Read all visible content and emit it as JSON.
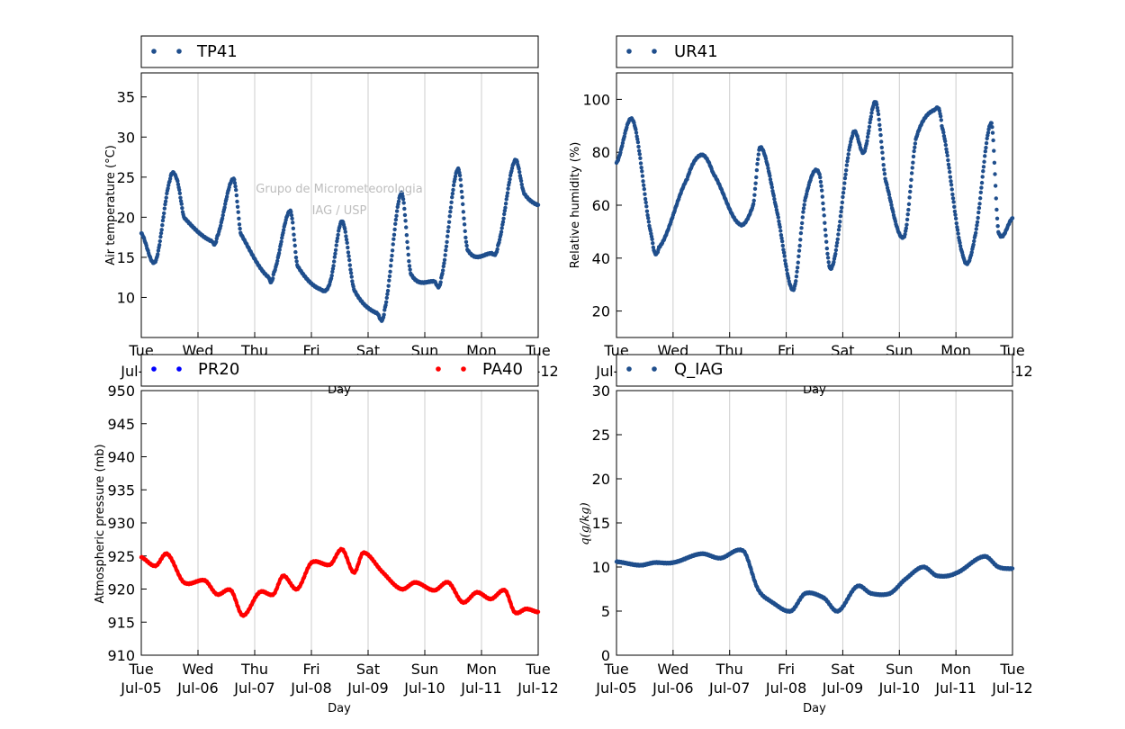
{
  "x_tick_labels": [
    {
      "day": "Tue",
      "date": "Jul-05"
    },
    {
      "day": "Wed",
      "date": "Jul-06"
    },
    {
      "day": "Thu",
      "date": "Jul-07"
    },
    {
      "day": "Fri",
      "date": "Jul-08"
    },
    {
      "day": "Sat",
      "date": "Jul-09"
    },
    {
      "day": "Sun",
      "date": "Jul-10"
    },
    {
      "day": "Mon",
      "date": "Jul-11"
    },
    {
      "day": "Tue",
      "date": "Jul-12"
    }
  ],
  "watermark": [
    "Grupo de Micrometeorologia",
    "IAG / USP"
  ],
  "colors": {
    "navy": "#1f4e8c",
    "blue": "#0000ff",
    "red": "#ff0000",
    "grid": "#cccccc"
  },
  "chart_data": [
    {
      "type": "scatter",
      "ylabel": "Air temperature (°C)",
      "xlabel": "Day",
      "x": [
        "2016-07-05T00:00",
        "2016-07-05T06:00",
        "2016-07-05T12:00",
        "2016-07-05T15:00",
        "2016-07-05T18:00",
        "2016-07-06T06:00",
        "2016-07-06T08:00",
        "2016-07-06T15:00",
        "2016-07-06T18:00",
        "2016-07-07T06:00",
        "2016-07-07T08:00",
        "2016-07-07T15:00",
        "2016-07-07T18:00",
        "2016-07-08T04:00",
        "2016-07-08T08:00",
        "2016-07-08T13:00",
        "2016-07-08T18:00",
        "2016-07-09T04:00",
        "2016-07-09T07:00",
        "2016-07-09T14:00",
        "2016-07-09T18:00",
        "2016-07-10T04:00",
        "2016-07-10T07:00",
        "2016-07-10T14:00",
        "2016-07-10T18:00",
        "2016-07-11T04:00",
        "2016-07-11T07:00",
        "2016-07-11T14:00",
        "2016-07-11T18:00",
        "2016-07-12T00:00"
      ],
      "ylim": [
        5,
        38
      ],
      "yticks": [
        10,
        15,
        20,
        25,
        30,
        35
      ],
      "series": [
        {
          "name": "TP41",
          "y": [
            18,
            14.5,
            24.5,
            24.8,
            20,
            17,
            17.5,
            24.8,
            18,
            12.5,
            13,
            20.8,
            14,
            11,
            12,
            19.5,
            11,
            8,
            8.5,
            23,
            13,
            12,
            12.5,
            26,
            16,
            15.5,
            16.5,
            27,
            23,
            21.5
          ]
        }
      ]
    },
    {
      "type": "scatter",
      "ylabel": "Relative humidity (%)",
      "xlabel": "Day",
      "x": [
        "2016-07-05T00:00",
        "2016-07-05T07:00",
        "2016-07-05T15:00",
        "2016-07-05T18:00",
        "2016-07-06T06:00",
        "2016-07-06T12:00",
        "2016-07-06T17:00",
        "2016-07-07T04:00",
        "2016-07-07T10:00",
        "2016-07-07T13:00",
        "2016-07-07T20:00",
        "2016-07-08T03:00",
        "2016-07-08T08:00",
        "2016-07-08T14:00",
        "2016-07-08T19:00",
        "2016-07-09T04:00",
        "2016-07-09T09:00",
        "2016-07-09T14:00",
        "2016-07-09T18:00",
        "2016-07-10T02:00",
        "2016-07-10T07:00",
        "2016-07-10T15:00",
        "2016-07-10T18:00",
        "2016-07-11T03:00",
        "2016-07-11T08:00",
        "2016-07-11T15:00",
        "2016-07-11T18:00",
        "2016-07-12T00:00"
      ],
      "ylim": [
        10,
        110
      ],
      "yticks": [
        20,
        40,
        60,
        80,
        100
      ],
      "series": [
        {
          "name": "UR41",
          "y": [
            76,
            92,
            48,
            44,
            70,
            79,
            72,
            53,
            60,
            82,
            58,
            28,
            62,
            72,
            36,
            86,
            80,
            99,
            70,
            48,
            85,
            96,
            90,
            41,
            48,
            91,
            50,
            55
          ]
        }
      ]
    },
    {
      "type": "scatter",
      "ylabel": "Atmospheric pressure (mb)",
      "xlabel": "Day",
      "x": [
        "2016-07-05T00:00",
        "2016-07-05T06:00",
        "2016-07-05T11:00",
        "2016-07-05T18:00",
        "2016-07-06T03:00",
        "2016-07-06T08:00",
        "2016-07-06T14:00",
        "2016-07-06T19:00",
        "2016-07-07T02:00",
        "2016-07-07T08:00",
        "2016-07-07T12:00",
        "2016-07-07T18:00",
        "2016-07-08T00:00",
        "2016-07-08T08:00",
        "2016-07-08T13:00",
        "2016-07-08T18:00",
        "2016-07-08T22:00",
        "2016-07-09T06:00",
        "2016-07-09T14:00",
        "2016-07-09T20:00",
        "2016-07-10T04:00",
        "2016-07-10T10:00",
        "2016-07-10T16:00",
        "2016-07-10T22:00",
        "2016-07-11T04:00",
        "2016-07-11T10:00",
        "2016-07-11T14:00",
        "2016-07-11T19:00",
        "2016-07-12T00:00"
      ],
      "ylim": [
        910,
        950
      ],
      "yticks": [
        910,
        915,
        920,
        925,
        930,
        935,
        940,
        945,
        950
      ],
      "series": [
        {
          "name": "PR20",
          "y": []
        },
        {
          "name": "PA40",
          "y": [
            924.8,
            923.5,
            925.3,
            921,
            921.3,
            919.2,
            919.8,
            916,
            919.5,
            919.2,
            922,
            920,
            924,
            923.7,
            926,
            922.5,
            925.5,
            922.6,
            920,
            921,
            919.8,
            921,
            918,
            919.5,
            918.5,
            919.8,
            916.5,
            917,
            916.5
          ]
        }
      ]
    },
    {
      "type": "scatter",
      "ylabel": "q(g/kg)",
      "xlabel": "Day",
      "x": [
        "2016-07-05T00:00",
        "2016-07-05T10:00",
        "2016-07-05T16:00",
        "2016-07-06T00:00",
        "2016-07-06T12:00",
        "2016-07-06T20:00",
        "2016-07-07T06:00",
        "2016-07-07T12:00",
        "2016-07-07T18:00",
        "2016-07-08T02:00",
        "2016-07-08T08:00",
        "2016-07-08T16:00",
        "2016-07-08T22:00",
        "2016-07-09T06:00",
        "2016-07-09T12:00",
        "2016-07-09T20:00",
        "2016-07-10T02:00",
        "2016-07-10T10:00",
        "2016-07-10T16:00",
        "2016-07-11T00:00",
        "2016-07-11T12:00",
        "2016-07-11T18:00",
        "2016-07-12T00:00"
      ],
      "ylim": [
        0,
        30
      ],
      "yticks": [
        0,
        5,
        10,
        15,
        20,
        25,
        30
      ],
      "series": [
        {
          "name": "Q_IAG",
          "y": [
            10.6,
            10.2,
            10.5,
            10.5,
            11.5,
            11,
            11.8,
            7.5,
            6,
            5,
            7,
            6.5,
            5,
            7.8,
            7,
            7,
            8.5,
            10,
            9,
            9.3,
            11.2,
            10,
            9.8
          ]
        }
      ]
    }
  ]
}
